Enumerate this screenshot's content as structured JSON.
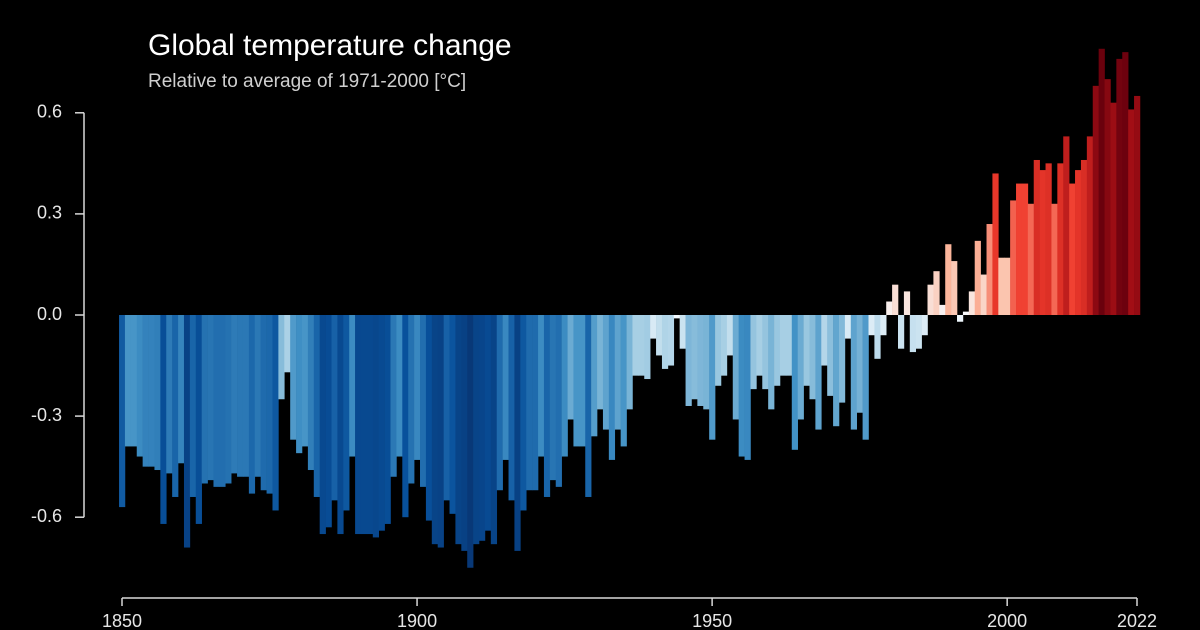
{
  "chart_data": {
    "type": "bar",
    "title": "Global temperature change",
    "subtitle": "Relative to average of 1971-2000  [°C]",
    "x": [
      1850,
      1851,
      1852,
      1853,
      1854,
      1855,
      1856,
      1857,
      1858,
      1859,
      1860,
      1861,
      1862,
      1863,
      1864,
      1865,
      1866,
      1867,
      1868,
      1869,
      1870,
      1871,
      1872,
      1873,
      1874,
      1875,
      1876,
      1877,
      1878,
      1879,
      1880,
      1881,
      1882,
      1883,
      1884,
      1885,
      1886,
      1887,
      1888,
      1889,
      1890,
      1891,
      1892,
      1893,
      1894,
      1895,
      1896,
      1897,
      1898,
      1899,
      1900,
      1901,
      1902,
      1903,
      1904,
      1905,
      1906,
      1907,
      1908,
      1909,
      1910,
      1911,
      1912,
      1913,
      1914,
      1915,
      1916,
      1917,
      1918,
      1919,
      1920,
      1921,
      1922,
      1923,
      1924,
      1925,
      1926,
      1927,
      1928,
      1929,
      1930,
      1931,
      1932,
      1933,
      1934,
      1935,
      1936,
      1937,
      1938,
      1939,
      1940,
      1941,
      1942,
      1943,
      1944,
      1945,
      1946,
      1947,
      1948,
      1949,
      1950,
      1951,
      1952,
      1953,
      1954,
      1955,
      1956,
      1957,
      1958,
      1959,
      1960,
      1961,
      1962,
      1963,
      1964,
      1965,
      1966,
      1967,
      1968,
      1969,
      1970,
      1971,
      1972,
      1973,
      1974,
      1975,
      1976,
      1977,
      1978,
      1979,
      1980,
      1981,
      1982,
      1983,
      1984,
      1985,
      1986,
      1987,
      1988,
      1989,
      1990,
      1991,
      1992,
      1993,
      1994,
      1995,
      1996,
      1997,
      1998,
      1999,
      2000,
      2001,
      2002,
      2003,
      2004,
      2005,
      2006,
      2007,
      2008,
      2009,
      2010,
      2011,
      2012,
      2013,
      2014,
      2015,
      2016,
      2017,
      2018,
      2019,
      2020,
      2021,
      2022
    ],
    "values": [
      -0.57,
      -0.39,
      -0.39,
      -0.42,
      -0.45,
      -0.45,
      -0.46,
      -0.62,
      -0.47,
      -0.54,
      -0.44,
      -0.69,
      -0.54,
      -0.62,
      -0.5,
      -0.49,
      -0.51,
      -0.51,
      -0.5,
      -0.47,
      -0.48,
      -0.48,
      -0.53,
      -0.48,
      -0.52,
      -0.53,
      -0.58,
      -0.25,
      -0.17,
      -0.37,
      -0.41,
      -0.39,
      -0.46,
      -0.54,
      -0.65,
      -0.63,
      -0.55,
      -0.65,
      -0.58,
      -0.42,
      -0.65,
      -0.65,
      -0.65,
      -0.66,
      -0.64,
      -0.62,
      -0.48,
      -0.42,
      -0.6,
      -0.5,
      -0.43,
      -0.51,
      -0.61,
      -0.68,
      -0.69,
      -0.55,
      -0.59,
      -0.68,
      -0.7,
      -0.75,
      -0.68,
      -0.67,
      -0.64,
      -0.68,
      -0.52,
      -0.43,
      -0.55,
      -0.7,
      -0.58,
      -0.52,
      -0.52,
      -0.42,
      -0.54,
      -0.49,
      -0.51,
      -0.42,
      -0.31,
      -0.39,
      -0.39,
      -0.54,
      -0.36,
      -0.28,
      -0.34,
      -0.43,
      -0.34,
      -0.39,
      -0.28,
      -0.18,
      -0.18,
      -0.19,
      -0.07,
      -0.12,
      -0.16,
      -0.15,
      -0.01,
      -0.1,
      -0.27,
      -0.25,
      -0.27,
      -0.28,
      -0.37,
      -0.21,
      -0.18,
      -0.12,
      -0.31,
      -0.42,
      -0.43,
      -0.22,
      -0.18,
      -0.22,
      -0.28,
      -0.21,
      -0.18,
      -0.18,
      -0.4,
      -0.31,
      -0.21,
      -0.25,
      -0.34,
      -0.15,
      -0.24,
      -0.33,
      -0.26,
      -0.07,
      -0.34,
      -0.29,
      -0.37,
      -0.06,
      -0.13,
      -0.06,
      0.04,
      0.09,
      -0.1,
      0.07,
      -0.11,
      -0.1,
      -0.06,
      0.09,
      0.13,
      0.03,
      0.21,
      0.16,
      -0.02,
      0.01,
      0.07,
      0.22,
      0.12,
      0.27,
      0.42,
      0.17,
      0.17,
      0.34,
      0.39,
      0.39,
      0.33,
      0.46,
      0.43,
      0.45,
      0.33,
      0.45,
      0.53,
      0.39,
      0.43,
      0.46,
      0.53,
      0.68,
      0.79,
      0.7,
      0.63,
      0.76,
      0.78,
      0.61,
      0.65
    ],
    "colorscale": [
      "#08306b",
      "#08519c",
      "#4292c6",
      "#9ecae1",
      "#f7fbff",
      "#fcbba1",
      "#ef3b2c",
      "#a50f15",
      "#67000d"
    ],
    "xlim": [
      1850,
      2022
    ],
    "xticks": [
      1850,
      1900,
      1950,
      2000,
      2022
    ],
    "ylim": [
      -0.8,
      0.8
    ],
    "yticks": [
      -0.6,
      -0.3,
      {
        "value": 0,
        "label": "0.0"
      },
      0.3,
      0.6
    ],
    "grid": false
  }
}
